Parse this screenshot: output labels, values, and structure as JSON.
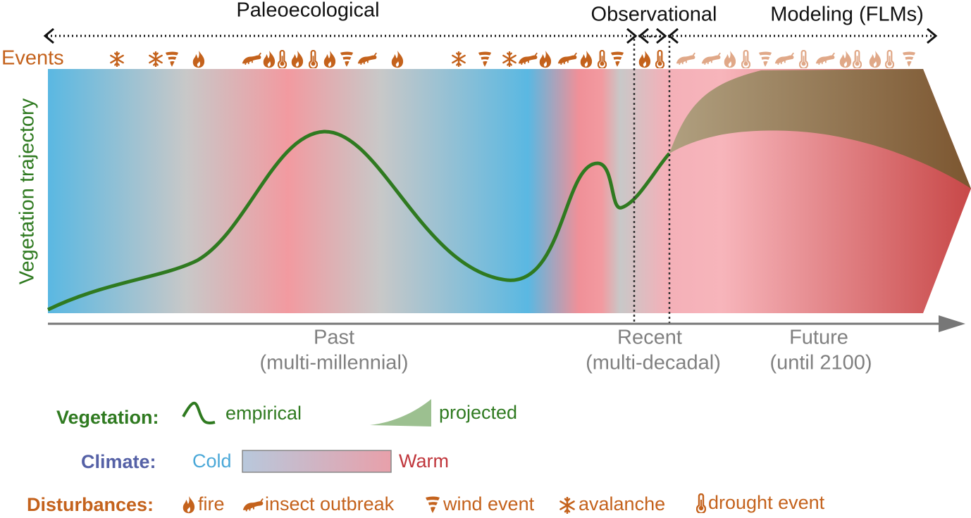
{
  "phases": {
    "paleoecological": "Paleoecological",
    "observational": "Observational",
    "modeling": "Modeling (FLMs)"
  },
  "events_label": "Events",
  "y_axis_label": "Vegetation trajectory",
  "periods": [
    {
      "name": "Past",
      "detail": "(multi-millennial)"
    },
    {
      "name": "Recent",
      "detail": "(multi-decadal)"
    },
    {
      "name": "Future",
      "detail": "(until 2100)"
    }
  ],
  "legend": {
    "vegetation": {
      "label": "Vegetation:",
      "empirical": "empirical",
      "projected": "projected"
    },
    "climate": {
      "label": "Climate:",
      "cold": "Cold",
      "warm": "Warm"
    },
    "disturbances": {
      "label": "Disturbances:",
      "items": [
        "fire",
        "insect outbreak",
        "wind event",
        "avalanche",
        "drought event"
      ]
    }
  }
}
